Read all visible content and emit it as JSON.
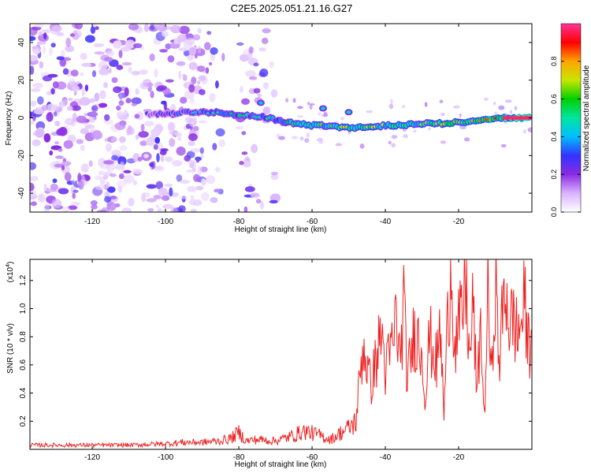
{
  "title": "C2E5.2025.051.21.16.G27",
  "chart_data": [
    {
      "type": "heatmap",
      "xlabel": "Height of straight line (km)",
      "ylabel": "Frequency (Hz)",
      "xlim": [
        -137,
        0
      ],
      "ylim": [
        -50,
        50
      ],
      "xticks": [
        -120,
        -100,
        -80,
        -60,
        -40,
        -20
      ],
      "yticks": [
        -40,
        -20,
        0,
        20,
        40
      ],
      "grid": false,
      "colorbar": {
        "label": "Normalized spectral amplitude",
        "range": [
          0.0,
          1.0
        ],
        "ticks": [
          0.0,
          0.2,
          0.4,
          0.6,
          0.8
        ],
        "colormap": [
          "#ffffff",
          "#d9b3ff",
          "#8a2be2",
          "#3333ff",
          "#00bfff",
          "#00e5a0",
          "#00d000",
          "#c8e600",
          "#ffa500",
          "#ff0000",
          "#ff3399"
        ]
      },
      "noise_region_x": [
        -137,
        -70
      ],
      "gap_x": [
        [
          -84,
          -80
        ]
      ],
      "main_line": {
        "x": [
          -105,
          -100,
          -95,
          -90,
          -85,
          -80,
          -76,
          -72,
          -68,
          -64,
          -60,
          -56,
          -52,
          -48,
          -44,
          -40,
          -36,
          -32,
          -28,
          -24,
          -20,
          -16,
          -12,
          -8,
          -4,
          0
        ],
        "y": [
          2,
          2,
          3,
          3,
          3,
          1,
          1,
          0,
          -2,
          -3,
          -4,
          -4,
          -5,
          -5,
          -5,
          -4,
          -4,
          -3,
          -3,
          -3,
          -2,
          -2,
          -1,
          0,
          0,
          0
        ],
        "amp": [
          0.25,
          0.3,
          0.3,
          0.4,
          0.45,
          0.5,
          0.4,
          0.45,
          0.5,
          0.55,
          0.6,
          0.55,
          0.6,
          0.6,
          0.65,
          0.6,
          0.65,
          0.6,
          0.65,
          0.65,
          0.7,
          0.7,
          0.75,
          0.8,
          0.9,
          1.0
        ]
      },
      "blobs": [
        {
          "x": -74,
          "y": 8,
          "amp": 0.4
        },
        {
          "x": -57,
          "y": 5,
          "amp": 0.45
        },
        {
          "x": -50,
          "y": 3,
          "amp": 0.45
        }
      ]
    },
    {
      "type": "line",
      "xlabel": "Height of straight line (km)",
      "ylabel": "SNR (10 * v/v)",
      "y_multiplier_label": "(x10",
      "y_multiplier_exp": "4",
      "xlim": [
        -137,
        0
      ],
      "ylim": [
        0,
        1.35
      ],
      "xticks": [
        -120,
        -100,
        -80,
        -60,
        -40,
        -20
      ],
      "yticks": [
        0.2,
        0.4,
        0.6,
        0.8,
        1.0,
        1.2
      ],
      "grid": false,
      "series": [
        {
          "color": "#ee2222",
          "x": [
            -137,
            -130,
            -120,
            -110,
            -100,
            -95,
            -90,
            -85,
            -82,
            -80,
            -78,
            -75,
            -70,
            -66,
            -62,
            -58,
            -55,
            -52,
            -50,
            -48,
            -47,
            -46,
            -45,
            -44,
            -42,
            -41,
            -40,
            -38,
            -37,
            -36,
            -35,
            -34,
            -32,
            -30,
            -29,
            -28,
            -26,
            -25,
            -24,
            -23,
            -22,
            -21,
            -20,
            -19,
            -18,
            -17,
            -16,
            -15,
            -14,
            -13,
            -12,
            -11,
            -10,
            -9,
            -8,
            -7,
            -6,
            -5,
            -4,
            -3,
            -2,
            -1,
            0
          ],
          "y": [
            0.03,
            0.03,
            0.03,
            0.03,
            0.04,
            0.05,
            0.05,
            0.06,
            0.08,
            0.12,
            0.06,
            0.07,
            0.06,
            0.09,
            0.13,
            0.1,
            0.07,
            0.12,
            0.15,
            0.2,
            0.5,
            0.75,
            0.6,
            0.45,
            0.7,
            0.85,
            0.55,
            0.75,
            0.95,
            0.6,
            1.03,
            0.5,
            0.85,
            0.7,
            0.35,
            0.8,
            0.6,
            0.85,
            0.25,
            0.9,
            1.35,
            0.7,
            0.85,
            0.95,
            1.2,
            0.6,
            1.05,
            0.35,
            0.9,
            0.2,
            1.1,
            0.45,
            1.25,
            0.6,
            0.95,
            1.15,
            0.85,
            0.95,
            0.8,
            0.9,
            1.03,
            0.75,
            0.8
          ]
        }
      ]
    }
  ]
}
